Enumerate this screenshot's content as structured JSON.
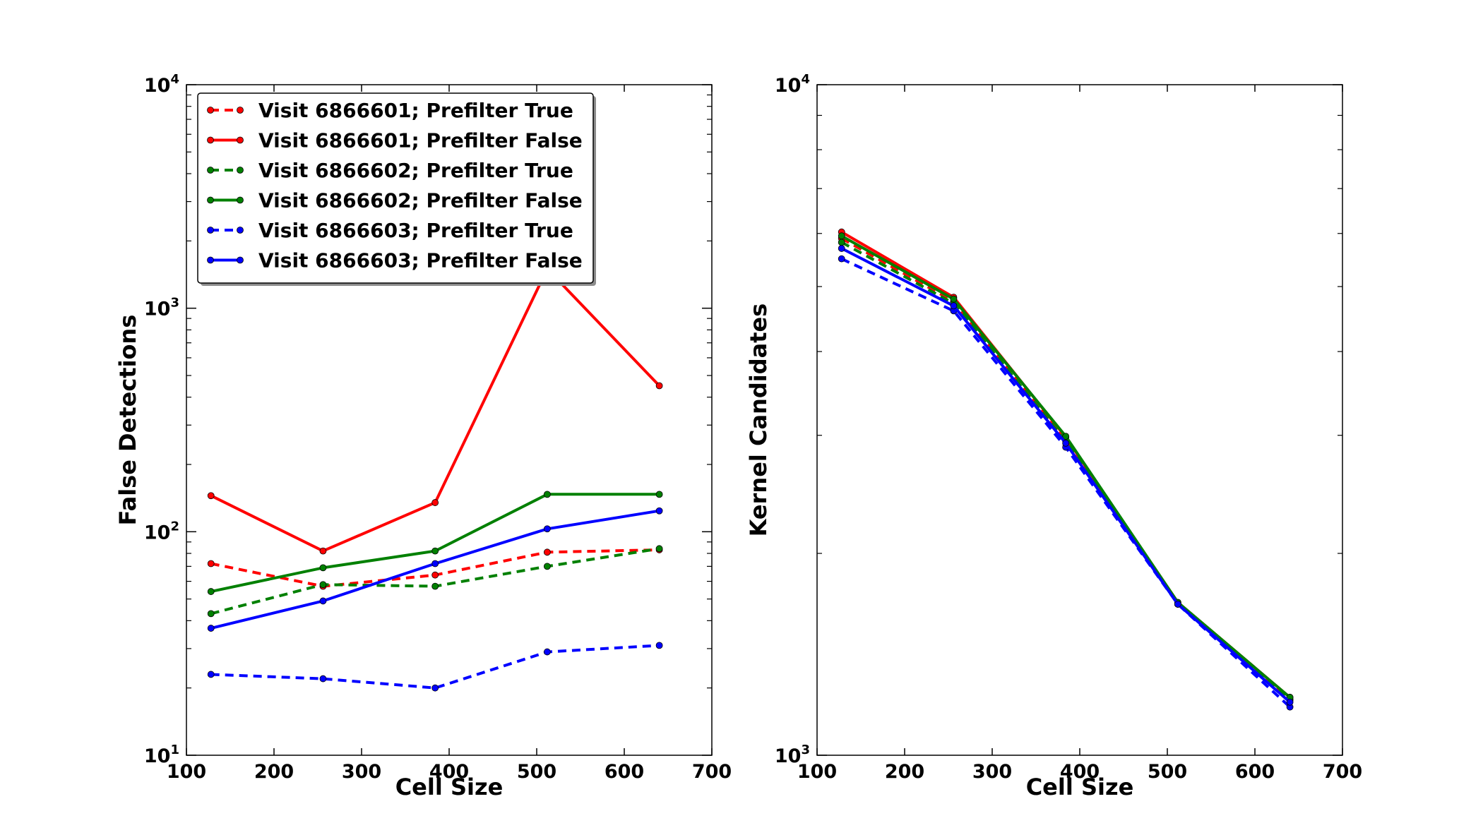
{
  "chart_data": [
    {
      "type": "line",
      "xlabel": "Cell Size",
      "ylabel": "False Detections",
      "xlim": [
        100,
        700
      ],
      "ylim": [
        10,
        10000
      ],
      "yscale": "log",
      "x_ticks": [
        "100",
        "200",
        "300",
        "400",
        "500",
        "600",
        "700"
      ],
      "y_ticks": [
        {
          "base": "10",
          "exp": "1"
        },
        {
          "base": "10",
          "exp": "2"
        },
        {
          "base": "10",
          "exp": "3"
        },
        {
          "base": "10",
          "exp": "4"
        }
      ],
      "legend_position": "top-left",
      "x": [
        128,
        256,
        384,
        512,
        640
      ],
      "series": [
        {
          "name": "Visit 6866601; Prefilter True",
          "color": "#ff0000",
          "dashed": true,
          "values": [
            72,
            57,
            64,
            81,
            83
          ]
        },
        {
          "name": "Visit 6866601; Prefilter False",
          "color": "#ff0000",
          "dashed": false,
          "values": [
            145,
            82,
            135,
            1500,
            450
          ]
        },
        {
          "name": "Visit 6866602; Prefilter True",
          "color": "#008000",
          "dashed": true,
          "values": [
            43,
            58,
            57,
            70,
            84
          ]
        },
        {
          "name": "Visit 6866602; Prefilter False",
          "color": "#008000",
          "dashed": false,
          "values": [
            54,
            69,
            82,
            147,
            147
          ]
        },
        {
          "name": "Visit 6866603; Prefilter True",
          "color": "#0000ff",
          "dashed": true,
          "values": [
            23,
            22,
            20,
            29,
            31
          ]
        },
        {
          "name": "Visit 6866603; Prefilter False",
          "color": "#0000ff",
          "dashed": false,
          "values": [
            37,
            49,
            72,
            103,
            124
          ]
        }
      ]
    },
    {
      "type": "line",
      "xlabel": "Cell Size",
      "ylabel": "Kernel Candidates",
      "xlim": [
        100,
        700
      ],
      "ylim": [
        1000,
        10000
      ],
      "yscale": "log",
      "x_ticks": [
        "100",
        "200",
        "300",
        "400",
        "500",
        "600",
        "700"
      ],
      "y_ticks": [
        {
          "base": "10",
          "exp": "3"
        },
        {
          "base": "10",
          "exp": "4"
        }
      ],
      "x": [
        128,
        256,
        384,
        512,
        640
      ],
      "series": [
        {
          "name": "Visit 6866601; Prefilter True",
          "color": "#ff0000",
          "dashed": true,
          "values": [
            5900,
            4750,
            2950,
            1680,
            1210
          ]
        },
        {
          "name": "Visit 6866601; Prefilter False",
          "color": "#ff0000",
          "dashed": false,
          "values": [
            6030,
            4820,
            2980,
            1690,
            1220
          ]
        },
        {
          "name": "Visit 6866602; Prefilter True",
          "color": "#008000",
          "dashed": true,
          "values": [
            5820,
            4720,
            2940,
            1680,
            1210
          ]
        },
        {
          "name": "Visit 6866602; Prefilter False",
          "color": "#008000",
          "dashed": false,
          "values": [
            5950,
            4790,
            2990,
            1690,
            1220
          ]
        },
        {
          "name": "Visit 6866603; Prefilter True",
          "color": "#0000ff",
          "dashed": true,
          "values": [
            5500,
            4600,
            2880,
            1680,
            1180
          ]
        },
        {
          "name": "Visit 6866603; Prefilter False",
          "color": "#0000ff",
          "dashed": false,
          "values": [
            5700,
            4680,
            2920,
            1680,
            1200
          ]
        }
      ]
    }
  ]
}
